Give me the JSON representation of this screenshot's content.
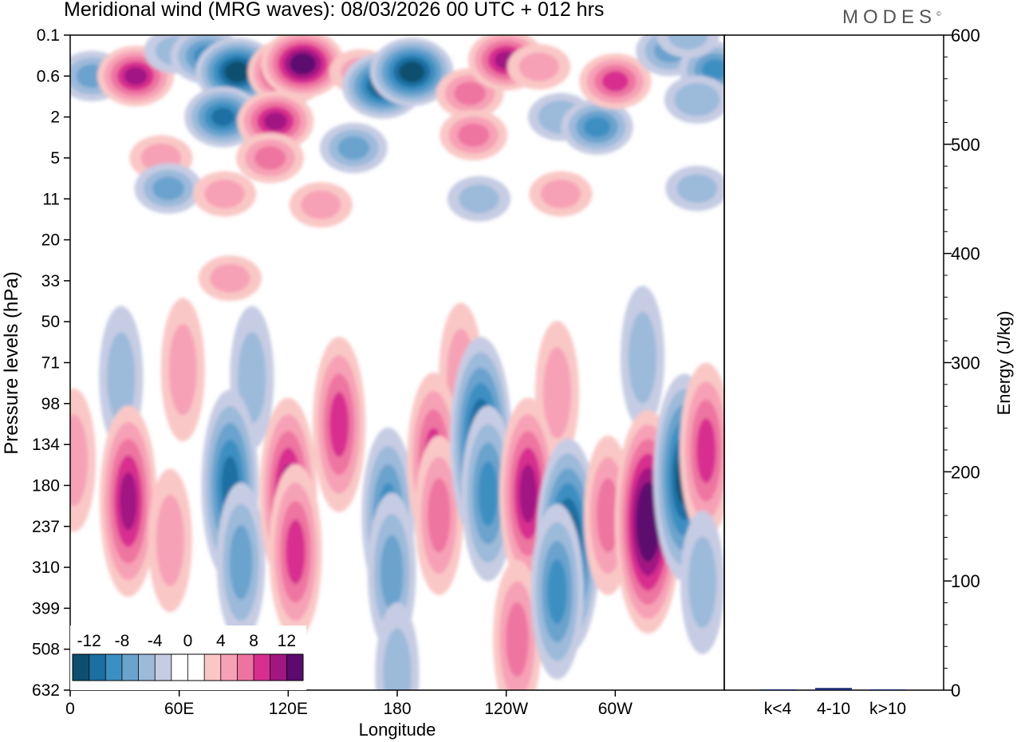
{
  "title": "Meridional wind (MRG waves):  08/03/2026  00 UTC  + 012 hrs",
  "brand": "MODES",
  "brand_mark": "©",
  "chart_data": [
    {
      "type": "heatmap",
      "title": "Meridional wind (MRG waves)",
      "xlabel": "Longitude",
      "ylabel": "Pressure levels (hPa)",
      "x_ticks": [
        "0",
        "60E",
        "120E",
        "180",
        "120W",
        "60W"
      ],
      "x_tick_degrees": [
        0,
        60,
        120,
        180,
        240,
        300
      ],
      "x_range_degrees": [
        0,
        360
      ],
      "y_ticks": [
        "0.1",
        "0.6",
        "2",
        "5",
        "11",
        "20",
        "33",
        "50",
        "71",
        "98",
        "134",
        "180",
        "237",
        "310",
        "399",
        "508",
        "632"
      ],
      "colorbar": {
        "labels": [
          "-12",
          "-8",
          "-4",
          "0",
          "4",
          "8",
          "12"
        ],
        "levels": [
          -14,
          -12,
          -10,
          -8,
          -6,
          -4,
          -2,
          2,
          4,
          6,
          8,
          10,
          12,
          14
        ],
        "colors": [
          "#0c4f6e",
          "#1a6fa3",
          "#3c8fc2",
          "#6aa3cd",
          "#9cbada",
          "#c6cce3",
          "#ffffff",
          "#ffffff",
          "#f9c8c6",
          "#f7a1b6",
          "#ee74a0",
          "#d82e8f",
          "#a11683",
          "#5c0a6e"
        ]
      },
      "blobs": [
        {
          "lon": 12,
          "p": 0.6,
          "value": -6
        },
        {
          "lon": 36,
          "p": 0.6,
          "value": 10
        },
        {
          "lon": 58,
          "p": 0.2,
          "value": -4
        },
        {
          "lon": 75,
          "p": 0.25,
          "value": -8
        },
        {
          "lon": 92,
          "p": 0.5,
          "value": -13
        },
        {
          "lon": 84,
          "p": 2,
          "value": -10
        },
        {
          "lon": 120,
          "p": 0.5,
          "value": 12
        },
        {
          "lon": 113,
          "p": 2.2,
          "value": 10
        },
        {
          "lon": 110,
          "p": 5,
          "value": 6
        },
        {
          "lon": 128,
          "p": 0.35,
          "value": 13
        },
        {
          "lon": 160,
          "p": 0.5,
          "value": 4
        },
        {
          "lon": 172,
          "p": 0.8,
          "value": -12
        },
        {
          "lon": 188,
          "p": 0.5,
          "value": -13
        },
        {
          "lon": 156,
          "p": 4,
          "value": -6
        },
        {
          "lon": 220,
          "p": 1,
          "value": 6
        },
        {
          "lon": 222,
          "p": 3,
          "value": 6
        },
        {
          "lon": 240,
          "p": 0.3,
          "value": 10
        },
        {
          "lon": 258,
          "p": 0.4,
          "value": 4
        },
        {
          "lon": 270,
          "p": 2,
          "value": -5
        },
        {
          "lon": 290,
          "p": 2.5,
          "value": -8
        },
        {
          "lon": 300,
          "p": 0.7,
          "value": 8
        },
        {
          "lon": 330,
          "p": 0.2,
          "value": -6
        },
        {
          "lon": 355,
          "p": 0.45,
          "value": -8
        },
        {
          "lon": 345,
          "p": 1.2,
          "value": -5
        },
        {
          "lon": 340,
          "p": 0.1,
          "value": -4
        },
        {
          "lon": 50,
          "p": 5,
          "value": 4
        },
        {
          "lon": 54,
          "p": 9,
          "value": -6
        },
        {
          "lon": 85,
          "p": 10,
          "value": 4
        },
        {
          "lon": 138,
          "p": 12,
          "value": 4
        },
        {
          "lon": 225,
          "p": 11,
          "value": -4
        },
        {
          "lon": 270,
          "p": 10,
          "value": 4
        },
        {
          "lon": 345,
          "p": 9,
          "value": -4
        },
        {
          "lon": 88,
          "p": 32,
          "value": 4
        },
        {
          "lon": 28,
          "p": 80,
          "value": -4
        },
        {
          "lon": 62,
          "p": 75,
          "value": 4
        },
        {
          "lon": 100,
          "p": 80,
          "value": -4
        },
        {
          "lon": 215,
          "p": 78,
          "value": 4
        },
        {
          "lon": 268,
          "p": 90,
          "value": 4
        },
        {
          "lon": 315,
          "p": 68,
          "value": -4
        },
        {
          "lon": 2,
          "p": 150,
          "value": 4
        },
        {
          "lon": 32,
          "p": 200,
          "value": 10
        },
        {
          "lon": 55,
          "p": 260,
          "value": 4
        },
        {
          "lon": 88,
          "p": 180,
          "value": -10
        },
        {
          "lon": 94,
          "p": 300,
          "value": -6
        },
        {
          "lon": 120,
          "p": 190,
          "value": 10
        },
        {
          "lon": 124,
          "p": 280,
          "value": 8
        },
        {
          "lon": 148,
          "p": 115,
          "value": 8
        },
        {
          "lon": 175,
          "p": 220,
          "value": -8
        },
        {
          "lon": 177,
          "p": 320,
          "value": -6
        },
        {
          "lon": 200,
          "p": 150,
          "value": 8
        },
        {
          "lon": 203,
          "p": 220,
          "value": 6
        },
        {
          "lon": 226,
          "p": 130,
          "value": -12
        },
        {
          "lon": 230,
          "p": 190,
          "value": -8
        },
        {
          "lon": 252,
          "p": 190,
          "value": 10
        },
        {
          "lon": 246,
          "p": 480,
          "value": 6
        },
        {
          "lon": 274,
          "p": 270,
          "value": -13
        },
        {
          "lon": 268,
          "p": 360,
          "value": -8
        },
        {
          "lon": 296,
          "p": 220,
          "value": 6
        },
        {
          "lon": 318,
          "p": 230,
          "value": 14
        },
        {
          "lon": 338,
          "p": 170,
          "value": -12
        },
        {
          "lon": 350,
          "p": 140,
          "value": 8
        },
        {
          "lon": 180,
          "p": 580,
          "value": -4
        },
        {
          "lon": 348,
          "p": 340,
          "value": -4
        }
      ]
    },
    {
      "type": "bar",
      "ylabel": "Energy (J/kg)",
      "categories": [
        "k<4",
        "4-10",
        "k>10"
      ],
      "values": [
        0.5,
        2,
        0.5
      ],
      "ylim": [
        0,
        600
      ],
      "y_ticks": [
        "0",
        "100",
        "200",
        "300",
        "400",
        "500",
        "600"
      ],
      "colors": [
        "#1a2a6e",
        "#1a2a6e",
        "#1a2a6e"
      ]
    }
  ]
}
